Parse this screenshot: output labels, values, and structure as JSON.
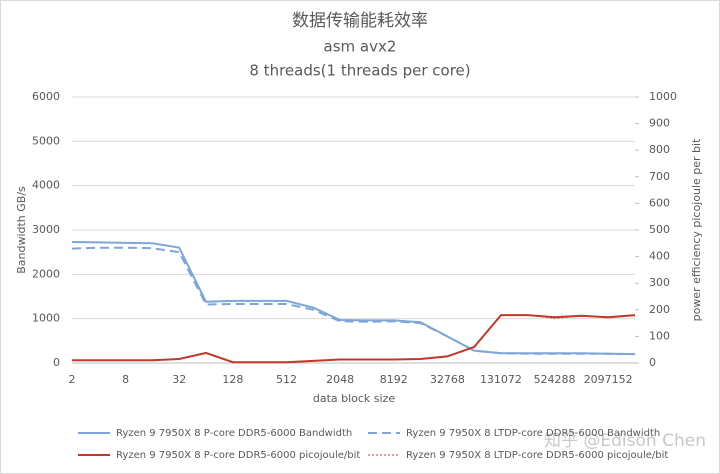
{
  "chart_data": {
    "type": "line",
    "title": "数据传输能耗效率",
    "subtitle": "asm avx2",
    "subtitle2": "8 threads(1 threads per core)",
    "x_label": "data block size",
    "y_label": "Bandwidth GB/s",
    "y2_label": "power efficiency picojoule per bit",
    "watermark": "知乎 @Edison Chen",
    "categories": [
      "2",
      null,
      "8",
      null,
      "32",
      null,
      "128",
      null,
      "512",
      null,
      "2048",
      null,
      "8192",
      null,
      "32768",
      null,
      "131072",
      null,
      "524288",
      null,
      "2097152",
      null
    ],
    "ylim": [
      0,
      6000
    ],
    "yticks": [
      0,
      1000,
      2000,
      3000,
      4000,
      5000,
      6000
    ],
    "y2lim": [
      0,
      1000
    ],
    "y2ticks": [
      0,
      100,
      200,
      300,
      400,
      500,
      600,
      700,
      800,
      900,
      1000
    ],
    "grid": true,
    "series": [
      {
        "name": "Ryzen 9 7950X 8 P-core DDR5-6000 Bandwidth",
        "color": "#7fa6d6",
        "dash": "solid",
        "values": [
          2730,
          2720,
          2710,
          2700,
          2600,
          1380,
          1400,
          1400,
          1400,
          1250,
          970,
          960,
          960,
          920,
          600,
          280,
          220,
          220,
          220,
          220,
          210,
          200
        ]
      },
      {
        "name": "Ryzen 9 7950X 8 LTDP-core DDR5-6000 Bandwidth",
        "color": "#7fa6d6",
        "dash": "dashed",
        "values": [
          2580,
          2600,
          2600,
          2590,
          2500,
          1320,
          1330,
          1330,
          1330,
          1200,
          940,
          930,
          940,
          900,
          600,
          280,
          220,
          210,
          210,
          210,
          210,
          200
        ]
      },
      {
        "name": "Ryzen 9 7950X 8 P-core DDR5-6000 picojoule/bit",
        "color": "#c0392b",
        "dash": "solid",
        "axis": "y2",
        "values": [
          10,
          10,
          10,
          10,
          15,
          38,
          3,
          3,
          3,
          8,
          13,
          13,
          13,
          15,
          25,
          60,
          180,
          180,
          172,
          178,
          172,
          180
        ]
      },
      {
        "name": "Ryzen 9 7950X 8 LTDP-core DDR5-6000 picojoule/bit",
        "color": "#c0392b",
        "dash": "dotted",
        "axis": "y2",
        "values": [
          10,
          10,
          10,
          10,
          14,
          36,
          3,
          3,
          3,
          8,
          13,
          13,
          13,
          15,
          25,
          60,
          178,
          180,
          168,
          176,
          170,
          178
        ]
      }
    ]
  }
}
